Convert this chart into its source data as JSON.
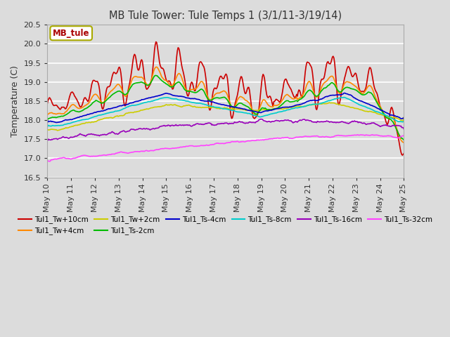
{
  "title": "MB Tule Tower: Tule Temps 1 (3/1/11-3/19/14)",
  "ylabel": "Temperature (C)",
  "ylim": [
    16.5,
    20.5
  ],
  "bg_color": "#dcdcdc",
  "legend_box_label": "MB_tule",
  "legend_box_color": "#aa0000",
  "legend_box_edge": "#aaaa00",
  "series": {
    "Tul1_Tw+10cm": {
      "color": "#cc0000",
      "lw": 1.2
    },
    "Tul1_Tw+4cm": {
      "color": "#ff8800",
      "lw": 1.2
    },
    "Tul1_Tw+2cm": {
      "color": "#cccc00",
      "lw": 1.2
    },
    "Tul1_Ts-2cm": {
      "color": "#00bb00",
      "lw": 1.2
    },
    "Tul1_Ts-4cm": {
      "color": "#0000cc",
      "lw": 1.2
    },
    "Tul1_Ts-8cm": {
      "color": "#00cccc",
      "lw": 1.2
    },
    "Tul1_Ts-16cm": {
      "color": "#9900bb",
      "lw": 1.2
    },
    "Tul1_Ts-32cm": {
      "color": "#ff44ff",
      "lw": 1.2
    }
  },
  "xtick_labels": [
    "May 10",
    "May 11",
    "May 12",
    "May 13",
    "May 14",
    "May 15",
    "May 16",
    "May 17",
    "May 18",
    "May 19",
    "May 20",
    "May 21",
    "May 22",
    "May 23",
    "May 24",
    "May 25"
  ],
  "yticks": [
    16.5,
    17.0,
    17.5,
    18.0,
    18.5,
    19.0,
    19.5,
    20.0,
    20.5
  ]
}
